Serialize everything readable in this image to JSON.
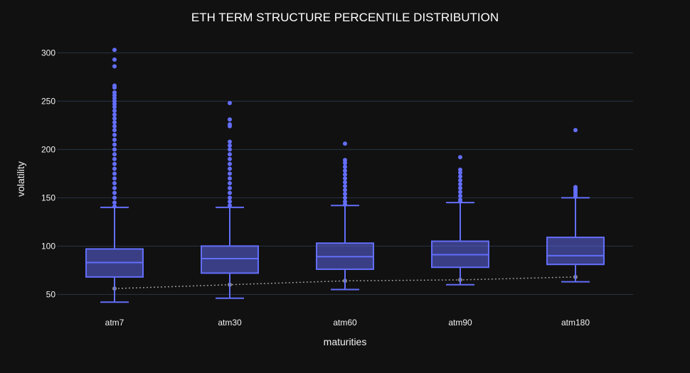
{
  "chart_data": {
    "type": "box",
    "title": "ETH TERM STRUCTURE PERCENTILE DISTRIBUTION",
    "xlabel": "maturities",
    "ylabel": "volatility",
    "categories": [
      "atm7",
      "atm30",
      "atm60",
      "atm90",
      "atm180"
    ],
    "y_ticks": [
      50,
      100,
      150,
      200,
      250,
      300
    ],
    "y_tick_labels": [
      "50",
      "100",
      "150",
      "200",
      "250",
      "300"
    ],
    "ylim": [
      37,
      312
    ],
    "grid": true,
    "boxes": [
      {
        "category": "atm7",
        "min": 42,
        "q1": 68,
        "median": 83,
        "q3": 97,
        "max": 140,
        "outliers": [
          303,
          293,
          286,
          266,
          264,
          259,
          256,
          253,
          250,
          247,
          244,
          240,
          236,
          232,
          228,
          224,
          220,
          215,
          210,
          205,
          200,
          195,
          190,
          185,
          180,
          175,
          170,
          165,
          160,
          155,
          150,
          145,
          141
        ]
      },
      {
        "category": "atm30",
        "min": 46,
        "q1": 72,
        "median": 87,
        "q3": 100,
        "max": 140,
        "outliers": [
          248,
          231,
          226,
          224,
          208,
          204,
          200,
          195,
          190,
          185,
          180,
          175,
          170,
          165,
          160,
          155,
          150,
          146,
          142
        ]
      },
      {
        "category": "atm60",
        "min": 55,
        "q1": 76,
        "median": 89,
        "q3": 103,
        "max": 142,
        "outliers": [
          206,
          189,
          186,
          182,
          178,
          174,
          170,
          166,
          162,
          158,
          154,
          150,
          146,
          143
        ]
      },
      {
        "category": "atm90",
        "min": 60,
        "q1": 78,
        "median": 91,
        "q3": 105,
        "max": 145,
        "outliers": [
          192,
          179,
          176,
          172,
          168,
          164,
          160,
          156,
          152,
          148,
          146
        ]
      },
      {
        "category": "atm180",
        "min": 63,
        "q1": 81,
        "median": 90,
        "q3": 109,
        "max": 150,
        "outliers": [
          220,
          161,
          159,
          157,
          155,
          153,
          151
        ]
      }
    ],
    "reference_line": {
      "type": "dotted",
      "values": [
        56,
        60,
        64,
        65,
        68
      ]
    },
    "colors": {
      "background": "#111111",
      "grid": "#283442",
      "box_line": "#636efa",
      "box_fill": "rgba(99,110,250,0.5)",
      "reference": "#9a9a9a"
    }
  }
}
